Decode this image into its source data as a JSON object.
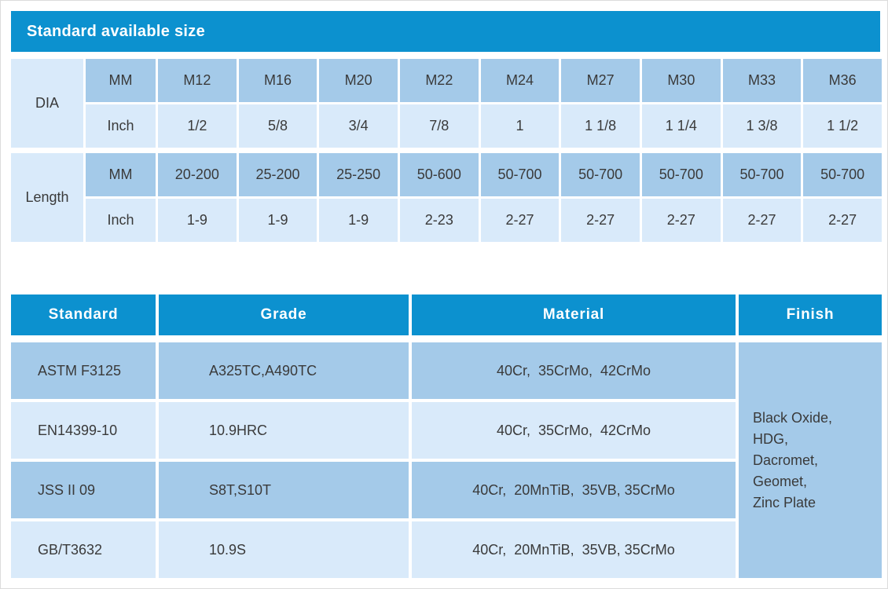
{
  "size_table": {
    "title": "Standard available size",
    "row_groups": {
      "dia_label": "DIA",
      "length_label": "Length"
    },
    "units": {
      "mm": "MM",
      "inch": "Inch"
    },
    "columns": [
      "M12",
      "M16",
      "M20",
      "M22",
      "M24",
      "M27",
      "M30",
      "M33",
      "M36"
    ],
    "dia_inch": [
      "1/2",
      "5/8",
      "3/4",
      "7/8",
      "1",
      "1 1/8",
      "1 1/4",
      "1 3/8",
      "1 1/2"
    ],
    "length_mm": [
      "20-200",
      "25-200",
      "25-250",
      "50-600",
      "50-700",
      "50-700",
      "50-700",
      "50-700",
      "50-700"
    ],
    "length_inch": [
      "1-9",
      "1-9",
      "1-9",
      "2-23",
      "2-27",
      "2-27",
      "2-27",
      "2-27",
      "2-27"
    ]
  },
  "spec_table": {
    "headers": [
      "Standard",
      "Grade",
      "Material",
      "Finish"
    ],
    "rows": [
      {
        "standard": "ASTM F3125",
        "grade": "A325TC,A490TC",
        "material": "40Cr,  35CrMo,  42CrMo"
      },
      {
        "standard": "EN14399-10",
        "grade": "10.9HRC",
        "material": "40Cr,  35CrMo,  42CrMo"
      },
      {
        "standard": "JSS II 09",
        "grade": "S8T,S10T",
        "material": "40Cr,  20MnTiB,  35VB, 35CrMo"
      },
      {
        "standard": "GB/T3632",
        "grade": "10.9S",
        "material": "40Cr,  20MnTiB,  35VB, 35CrMo"
      }
    ],
    "finish": "Black Oxide,\nHDG,\nDacromet,\nGeomet,\nZinc Plate"
  },
  "colors": {
    "header_blue": "#0c91cf",
    "cell_medium_blue": "#a4cae9",
    "cell_light_blue": "#d9eafa",
    "body_text": "#3a3a3a",
    "header_text": "#ffffff",
    "page_background": "#ffffff"
  }
}
